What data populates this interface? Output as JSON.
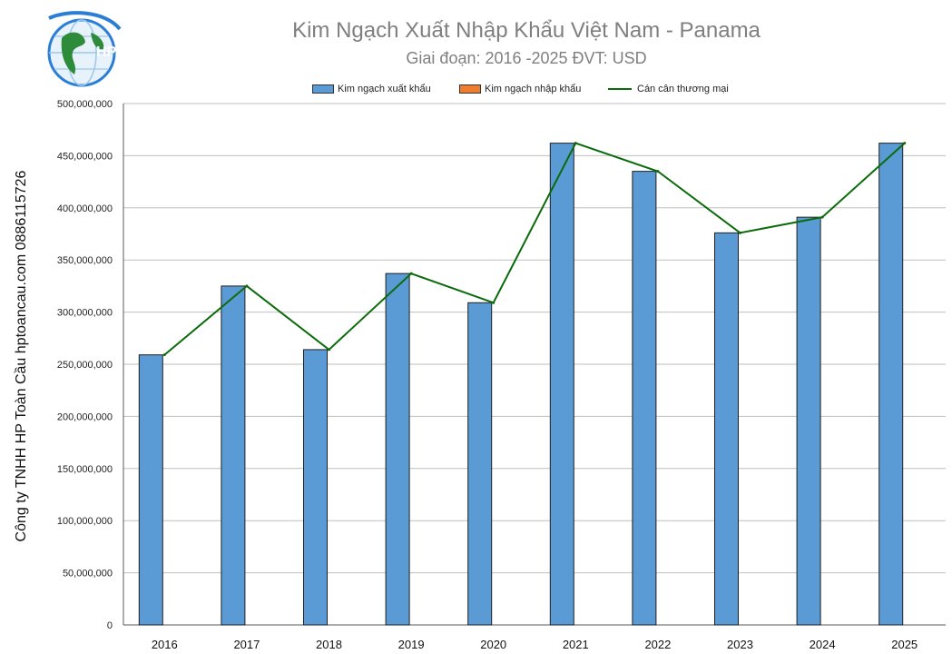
{
  "title": "Kim Ngạch Xuất Nhập Khẩu Việt Nam - Panama",
  "subtitle": "Giai đoạn: 2016 -2025  ĐVT: USD",
  "side_text": "Công ty TNHH HP Toàn Cầu hptoancau.com 0886115726",
  "logo_text": "HP",
  "colors": {
    "export": "#5b9bd5",
    "import": "#ed7d31",
    "balance": "#0b6b0b",
    "grid": "#bfbfbf"
  },
  "legend": {
    "export": "Kim ngạch xuất khẩu",
    "import": "Kim ngạch nhập khẩu",
    "balance": "Cán cân thương mại"
  },
  "chart_data": {
    "type": "bar",
    "categories": [
      "2016",
      "2017",
      "2018",
      "2019",
      "2020",
      "2021",
      "2022",
      "2023",
      "2024",
      "2025"
    ],
    "series": [
      {
        "name": "Kim ngạch xuất khẩu",
        "type": "bar",
        "values": [
          259000000,
          325000000,
          264000000,
          337000000,
          309000000,
          462000000,
          435000000,
          376000000,
          391000000,
          462000000
        ]
      },
      {
        "name": "Kim ngạch nhập khẩu",
        "type": "bar",
        "values": [
          0,
          0,
          0,
          0,
          0,
          0,
          0,
          0,
          0,
          0
        ]
      },
      {
        "name": "Cán cân thương mại",
        "type": "line",
        "values": [
          259000000,
          325000000,
          264000000,
          337000000,
          309000000,
          462000000,
          435000000,
          376000000,
          391000000,
          462000000
        ]
      }
    ],
    "ylim": [
      0,
      500000000
    ],
    "yticks": [
      "0",
      "50,000,000",
      "100,000,000",
      "150,000,000",
      "200,000,000",
      "250,000,000",
      "300,000,000",
      "350,000,000",
      "400,000,000",
      "450,000,000",
      "500,000,000"
    ],
    "ytick_values": [
      0,
      50000000,
      100000000,
      150000000,
      200000000,
      250000000,
      300000000,
      350000000,
      400000000,
      450000000,
      500000000
    ],
    "grid": true,
    "legend_position": "top"
  }
}
